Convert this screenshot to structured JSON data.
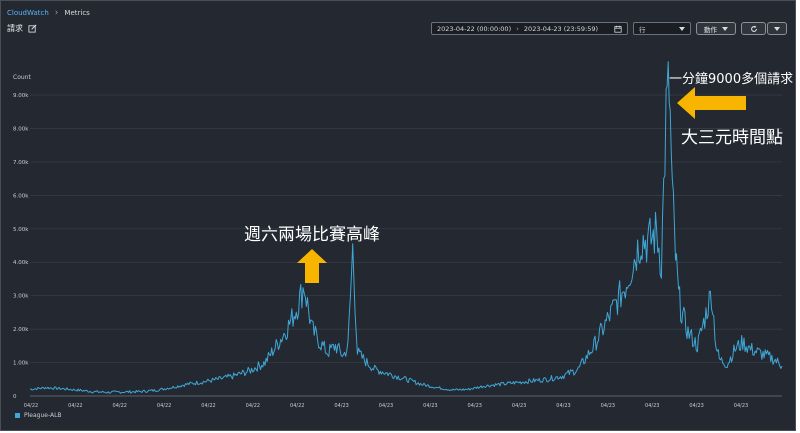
{
  "breadcrumb": {
    "root": "CloudWatch",
    "current": "Metrics"
  },
  "header": {
    "title": "請求"
  },
  "toolbar": {
    "start": "2023-04-22 (00:00:00)",
    "end": "2023-04-23 (23:59:59)",
    "period_label": "行",
    "actions_label": "動作"
  },
  "icons": {
    "edit": "edit-icon",
    "calendar": "calendar-icon",
    "refresh": "refresh-icon",
    "caret": "caret-down-icon",
    "arrow_left": "arrow-left-annotation-icon",
    "arrow_up": "arrow-up-annotation-icon"
  },
  "colors": {
    "background": "#232831",
    "series": "#3fa7d6",
    "annotation_arrow": "#f7b500",
    "link": "#5cb3f5"
  },
  "annotations": {
    "peak_rate": "一分鐘9000多個請求",
    "peak_reason": "大三元時間點",
    "saturday_peaks": "週六兩場比賽高峰"
  },
  "chart_data": {
    "type": "line",
    "ylabel": "Count",
    "ylim": [
      0,
      9300
    ],
    "yticks": [
      "0",
      "1.00k",
      "2.00k",
      "3.00k",
      "4.00k",
      "5.00k",
      "6.00k",
      "7.00k",
      "8.00k",
      "9.00k"
    ],
    "ytick_values": [
      0,
      1000,
      2000,
      3000,
      4000,
      5000,
      6000,
      7000,
      8000,
      9000
    ],
    "xticks": [
      "04/22",
      "04/22",
      "04/22",
      "04/22",
      "04/22",
      "04/22",
      "04/22",
      "04/23",
      "04/23",
      "04/23",
      "04/23",
      "04/23",
      "04/23",
      "04/23",
      "04/23",
      "04/23",
      "04/23"
    ],
    "xlim": [
      0,
      48
    ],
    "grid": true,
    "legend_position": "bottom-left",
    "series": [
      {
        "name": "Pleague-ALB",
        "x": [
          0,
          1,
          2,
          3,
          4,
          5,
          6,
          7,
          8,
          9,
          10,
          11,
          12,
          13,
          14,
          15,
          16,
          16.5,
          17,
          17.5,
          18,
          18.5,
          19,
          19.5,
          20,
          20.3,
          20.6,
          20.9,
          21.5,
          22,
          23,
          24,
          25,
          26,
          27,
          28,
          29,
          30,
          31,
          32,
          33,
          34,
          35,
          36,
          37,
          38,
          39,
          39.5,
          40,
          40.3,
          40.6,
          40.8,
          41,
          41.2,
          41.4,
          41.6,
          41.8,
          42,
          42.3,
          42.6,
          43,
          43.5,
          43.8,
          44,
          44.5,
          45,
          45.5,
          46,
          46.5,
          47,
          47.5,
          48
        ],
        "values": [
          200,
          250,
          220,
          180,
          130,
          110,
          120,
          130,
          170,
          250,
          350,
          420,
          500,
          600,
          750,
          1000,
          1700,
          2100,
          2600,
          3300,
          2000,
          1600,
          1300,
          1500,
          1200,
          1500,
          4400,
          1300,
          1000,
          800,
          650,
          500,
          350,
          250,
          180,
          200,
          300,
          350,
          400,
          450,
          500,
          600,
          800,
          1500,
          2400,
          3300,
          4700,
          4600,
          4900,
          4000,
          8400,
          9200,
          6000,
          4200,
          3000,
          2500,
          2200,
          1900,
          1700,
          1500,
          2200,
          3100,
          1500,
          1100,
          950,
          1400,
          1600,
          1400,
          1300,
          1200,
          1100,
          900
        ]
      }
    ]
  }
}
